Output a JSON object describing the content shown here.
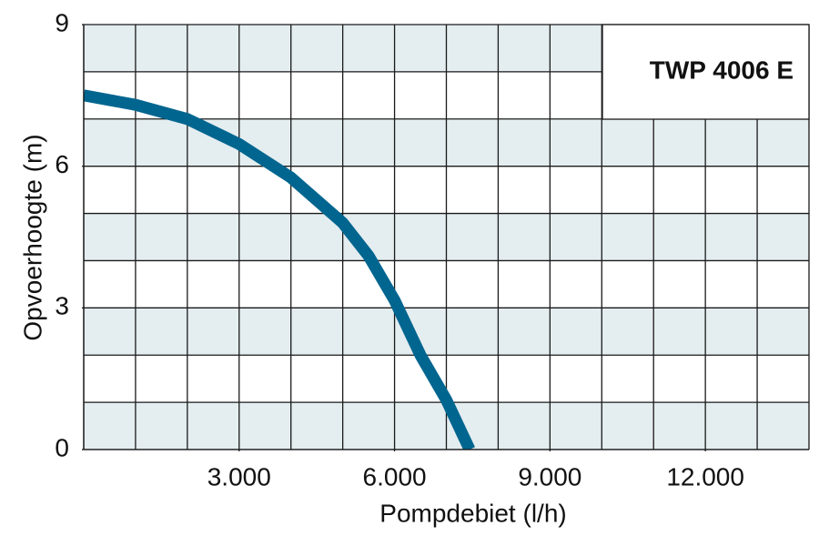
{
  "chart_data": {
    "type": "line",
    "title": "TWP 4006 E",
    "x_label": "Pompdebiet (l/h)",
    "y_label": "Opvoerhoogte (m)",
    "x": [
      0,
      1000,
      2000,
      3000,
      4000,
      5000,
      5500,
      6000,
      6500,
      7000,
      7450
    ],
    "values": [
      7.5,
      7.3,
      7.0,
      6.47,
      5.76,
      4.8,
      4.1,
      3.16,
      2.0,
      1.05,
      0
    ],
    "color": "#00658f",
    "xlim": [
      0,
      14000
    ],
    "ylim": [
      0,
      9
    ],
    "xticks": [
      {
        "value": 3000,
        "label": "3.000"
      },
      {
        "value": 6000,
        "label": "6.000"
      },
      {
        "value": 9000,
        "label": "9.000"
      },
      {
        "value": 12000,
        "label": "12.000"
      }
    ],
    "yticks": [
      0,
      3,
      6,
      9
    ],
    "grid": true,
    "xgrid_step": 1000,
    "ygrid_step": 1
  }
}
